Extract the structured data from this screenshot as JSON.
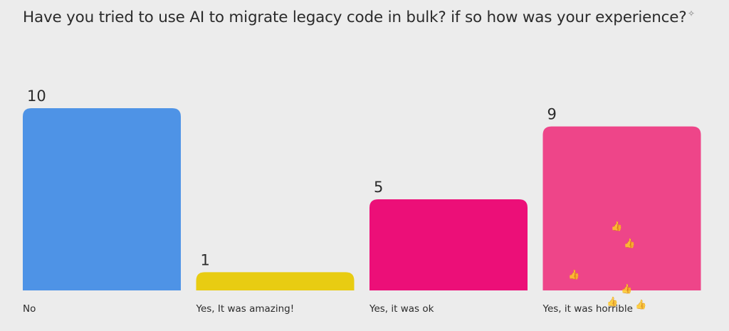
{
  "question": "Have you tried to use AI to migrate legacy code in bulk? if so how was your experience?",
  "chart_data": {
    "type": "bar",
    "categories": [
      "No",
      "Yes, It was amazing!",
      "Yes, it was ok",
      "Yes, it was horrible"
    ],
    "values": [
      10,
      1,
      5,
      9
    ],
    "title": "Have you tried to use AI to migrate legacy code in bulk? if so how was your experience?",
    "xlabel": "",
    "ylabel": "",
    "ylim": [
      0,
      10
    ],
    "grid": false,
    "legend": "none",
    "colors": [
      "#4e93e6",
      "#e8cc12",
      "#ec0f78",
      "#ee4589"
    ]
  },
  "reaction_icons": [
    "thumbs-up-icon"
  ]
}
